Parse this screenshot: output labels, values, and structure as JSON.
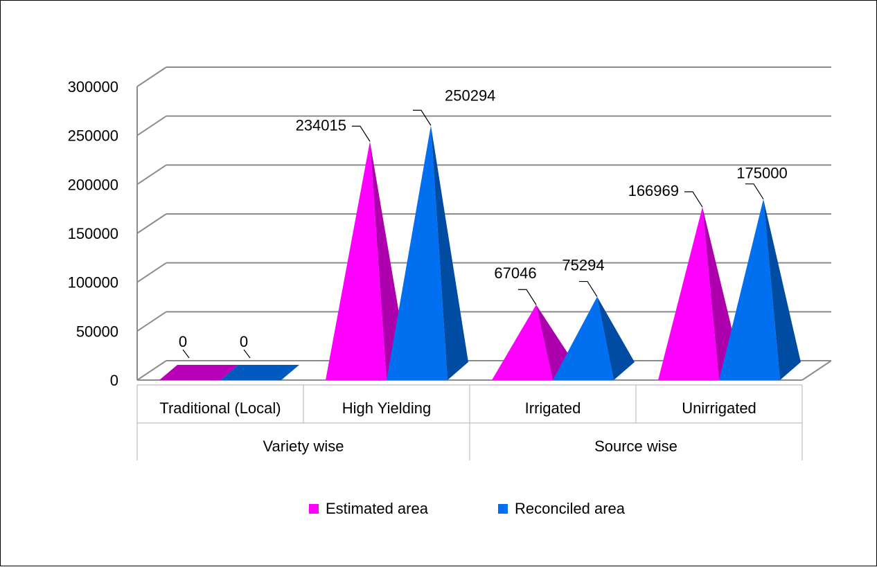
{
  "chart_data": {
    "type": "bar",
    "subtype": "3d-pyramid",
    "title": "",
    "xlabel": "",
    "ylabel": "",
    "ylim": [
      0,
      300000
    ],
    "y_ticks": [
      "0",
      "50000",
      "100000",
      "150000",
      "200000",
      "250000",
      "300000"
    ],
    "grid": true,
    "legend_position": "bottom",
    "groups": [
      {
        "label": "Variety wise",
        "categories": [
          "Traditional (Local)",
          "High Yielding"
        ]
      },
      {
        "label": "Source wise",
        "categories": [
          "Irrigated",
          "Unirrigated"
        ]
      }
    ],
    "categories": [
      "Traditional (Local)",
      "High Yielding",
      "Irrigated",
      "Unirrigated"
    ],
    "series": [
      {
        "name": "Estimated area",
        "color": "#ff00ff",
        "values": [
          0,
          234015,
          67046,
          166969
        ],
        "labels": [
          "0",
          "234015",
          "67046",
          "166969"
        ]
      },
      {
        "name": "Reconciled area",
        "color": "#0070f0",
        "values": [
          0,
          250294,
          75294,
          175000
        ],
        "labels": [
          "0",
          "250294",
          "75294",
          "175000"
        ]
      }
    ]
  }
}
